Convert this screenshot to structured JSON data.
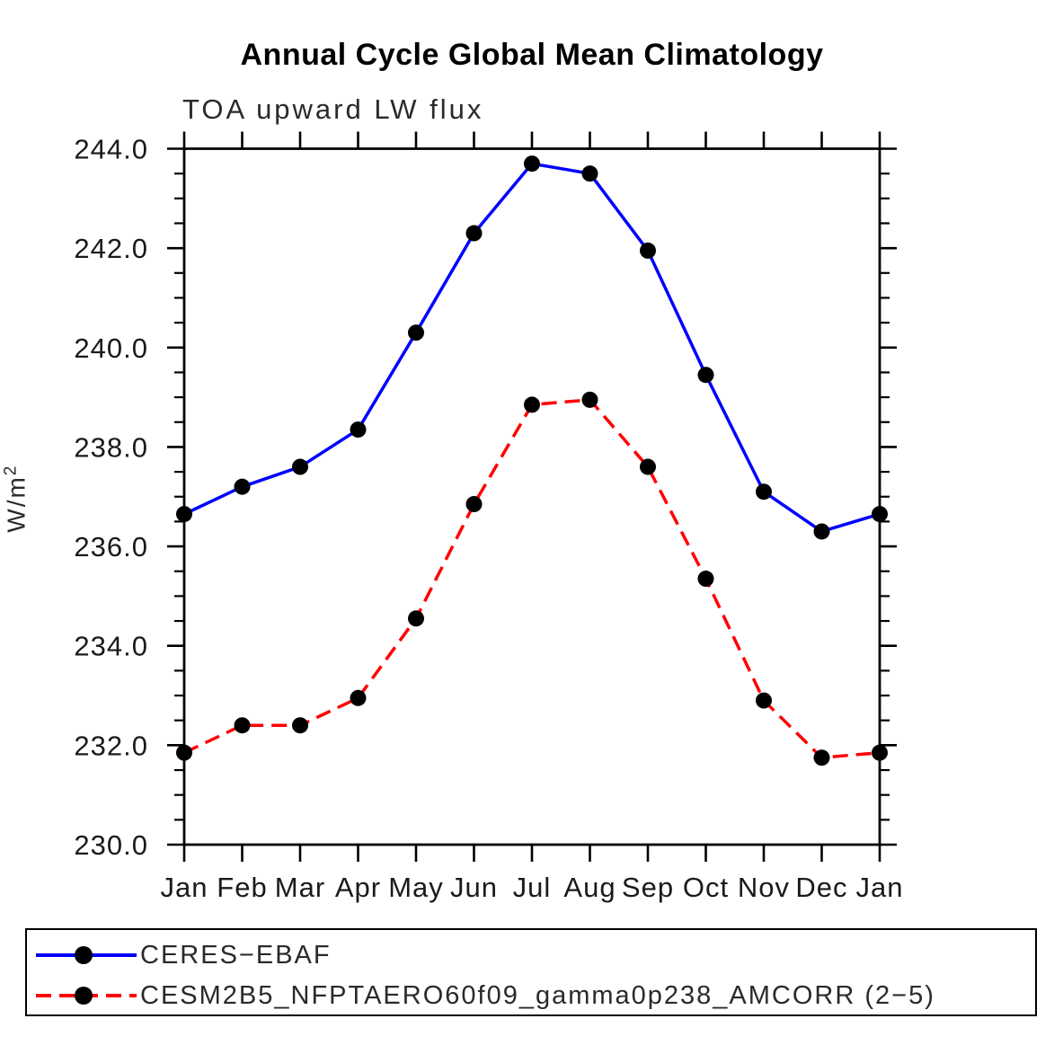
{
  "page": {
    "title": "Annual Cycle Global Mean Climatology",
    "subtitle": "TOA upward LW flux",
    "ylabel_base": "W/m",
    "ylabel_sup": "2"
  },
  "legend": {
    "entries": [
      {
        "label": "CERES−EBAF",
        "color": "#0000ff",
        "style": "solid",
        "marker": "black-filled-circle"
      },
      {
        "label": "CESM2B5_NFPTAERO60f09_gamma0p238_AMCORR (2−5)",
        "color": "#ff0000",
        "style": "dashed",
        "marker": "black-filled-circle"
      }
    ]
  },
  "colors": {
    "axis": "#000000",
    "marker": "#000000",
    "series_blue": "#0000ff",
    "series_red": "#ff0000",
    "background": "#ffffff"
  },
  "chart_data": {
    "type": "line",
    "title": "Annual Cycle Global Mean Climatology",
    "subtitle": "TOA upward LW flux",
    "xlabel": "",
    "ylabel": "W/m²",
    "categories": [
      "Jan",
      "Feb",
      "Mar",
      "Apr",
      "May",
      "Jun",
      "Jul",
      "Aug",
      "Sep",
      "Oct",
      "Nov",
      "Dec",
      "Jan"
    ],
    "ylim": [
      230.0,
      244.0
    ],
    "yticks_major": [
      230.0,
      232.0,
      234.0,
      236.0,
      238.0,
      240.0,
      242.0,
      244.0
    ],
    "ytick_minor_step": 0.5,
    "ytick_label_format": "one-decimal",
    "grid": false,
    "legend_position": "bottom-box",
    "marker": "filled-circle-black",
    "series": [
      {
        "name": "CERES−EBAF",
        "color": "#0000ff",
        "line_style": "solid",
        "values": [
          236.65,
          237.2,
          237.6,
          238.35,
          240.3,
          242.3,
          243.7,
          243.5,
          241.95,
          239.45,
          237.1,
          236.3,
          236.65
        ]
      },
      {
        "name": "CESM2B5_NFPTAERO60f09_gamma0p238_AMCORR (2−5)",
        "color": "#ff0000",
        "line_style": "dashed",
        "values": [
          231.85,
          232.4,
          232.4,
          232.95,
          234.55,
          236.85,
          238.85,
          238.95,
          237.6,
          235.35,
          232.9,
          231.75,
          231.85
        ]
      }
    ]
  }
}
